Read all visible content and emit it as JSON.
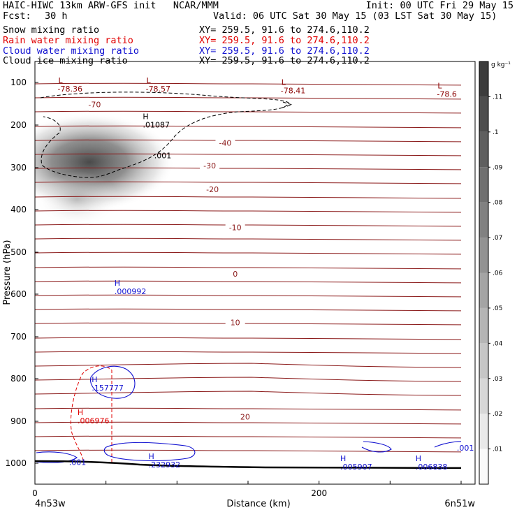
{
  "header": {
    "line1_left": "HAIC-HIWC 13km ARW-GFS init   NCAR/MMM",
    "line1_right": "Init: 00 UTC Fri 29 May 15",
    "fcst_label": "Fcst:",
    "fcst_value": "30 h",
    "valid": "Valid: 06 UTC Sat 30 May 15 (03 LST Sat 30 May 15)",
    "fields": [
      {
        "name": "Snow mixing ratio",
        "range": "XY= 259.5, 91.6 to 274.6,110.2",
        "color": "#000000"
      },
      {
        "name": "Rain water mixing ratio",
        "range": "XY= 259.5, 91.6 to 274.6,110.2",
        "color": "#e00000"
      },
      {
        "name": "Cloud water mixing ratio",
        "range": "XY= 259.5, 91.6 to 274.6,110.2",
        "color": "#1010d0"
      },
      {
        "name": "Cloud ice mixing ratio",
        "range": "XY= 259.5, 91.6 to 274.6,110.2",
        "color": "#000000"
      }
    ]
  },
  "chart_data": {
    "type": "contour",
    "xlabel": "Distance (km)",
    "ylabel": "Pressure (hPa)",
    "x_ticks": [
      "0",
      "200"
    ],
    "x_range": [
      0,
      300
    ],
    "y_ticks": [
      "100",
      "200",
      "300",
      "400",
      "500",
      "600",
      "700",
      "800",
      "900",
      "1000"
    ],
    "y_range": [
      1050,
      50
    ],
    "y_scale": "log",
    "endpoint_left": "4n53w",
    "endpoint_right": "6n51w",
    "colorbar": {
      "unit": "g kg⁻¹",
      "labels": [
        ".01",
        ".02",
        ".03",
        ".04",
        ".05",
        ".06",
        ".07",
        ".08",
        ".09",
        ".1",
        ".11"
      ],
      "levels": [
        0.01,
        0.02,
        0.03,
        0.04,
        0.05,
        0.06,
        0.07,
        0.08,
        0.09,
        0.1,
        0.11
      ]
    },
    "temperature_isotherm_labels": [
      {
        "value": "-70",
        "x_km": 42,
        "p": 155
      },
      {
        "value": "-40",
        "x_km": 134,
        "p": 245
      },
      {
        "value": "-30",
        "x_km": 123,
        "p": 298
      },
      {
        "value": "-20",
        "x_km": 125,
        "p": 355
      },
      {
        "value": "-10",
        "x_km": 141,
        "p": 445
      },
      {
        "value": "0",
        "x_km": 141,
        "p": 555
      },
      {
        "value": "10",
        "x_km": 141,
        "p": 670
      },
      {
        "value": "20",
        "x_km": 148,
        "p": 893
      }
    ],
    "temperature_extrema": [
      {
        "type": "L",
        "value": "-78.36",
        "x_km": 16,
        "p": 102,
        "color": "#8b0000"
      },
      {
        "type": "L",
        "value": "-78.57",
        "x_km": 78,
        "p": 102,
        "color": "#8b0000"
      },
      {
        "type": "L",
        "value": "-78.41",
        "x_km": 173,
        "p": 106,
        "color": "#8b0000"
      },
      {
        "type": "L",
        "value": "-78.6",
        "x_km": 283,
        "p": 114,
        "color": "#8b0000"
      }
    ],
    "mixing_ratio_extrema": [
      {
        "type": "H",
        "value": ".01087",
        "x_km": 76,
        "p": 186,
        "color": "#000000"
      },
      {
        "type": "H",
        "value": ".000992",
        "x_km": 56,
        "p": 580,
        "color": "#1010d0"
      },
      {
        "type": "H",
        "value": ".157777",
        "x_km": 40,
        "p": 808,
        "color": "#1010d0"
      },
      {
        "type": "H",
        "value": ".006976",
        "x_km": 30,
        "p": 885,
        "color": "#e00000"
      },
      {
        "type": "H",
        "value": ".232932",
        "x_km": 80,
        "p": 990,
        "color": "#1010d0"
      },
      {
        "type": "H",
        "value": ".005907",
        "x_km": 215,
        "p": 995,
        "color": "#1010d0"
      },
      {
        "type": "H",
        "value": ".006838",
        "x_km": 268,
        "p": 995,
        "color": "#1010d0"
      }
    ],
    "contour_labels": [
      {
        "value": ".001",
        "x_km": 90,
        "p": 278,
        "color": "#000000"
      },
      {
        "value": ".001",
        "x_km": 30,
        "p": 1004,
        "color": "#1010d0"
      },
      {
        "value": ".001",
        "x_km": 303,
        "p": 970,
        "color": "#1010d0"
      }
    ]
  }
}
